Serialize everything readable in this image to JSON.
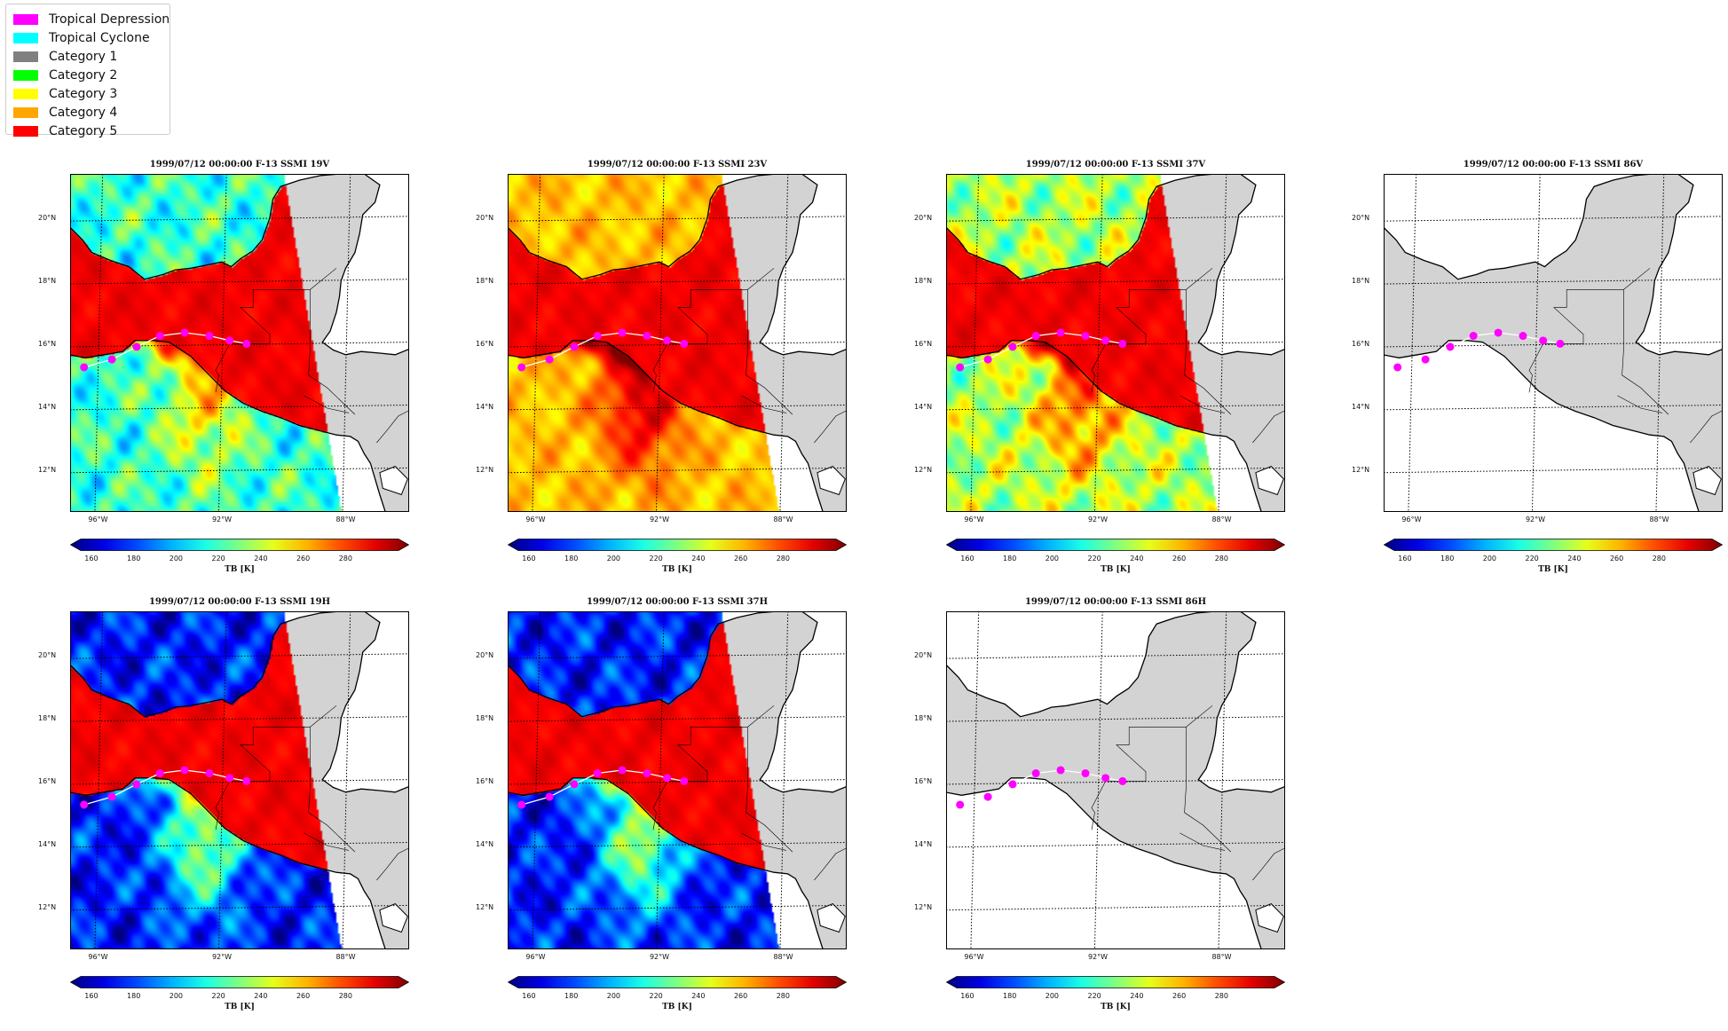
{
  "legend": {
    "items": [
      {
        "label": "Tropical Depression",
        "color": "#ff00ff"
      },
      {
        "label": "Tropical Cyclone",
        "color": "#00ffff"
      },
      {
        "label": "Category 1",
        "color": "#808080"
      },
      {
        "label": "Category 2",
        "color": "#00ff00"
      },
      {
        "label": "Category 3",
        "color": "#ffff00"
      },
      {
        "label": "Category 4",
        "color": "#ffa500"
      },
      {
        "label": "Category 5",
        "color": "#ff0000"
      }
    ]
  },
  "chart_data": [
    {
      "type": "heatmap",
      "title": "1999/07/12 00:00:00  F-13 SSMI 19V",
      "has_data": true,
      "ocean_level": "cold",
      "variant": "lowfreq",
      "colorbar_label": "TB [K]"
    },
    {
      "type": "heatmap",
      "title": "1999/07/12 00:00:00  F-13 SSMI 23V",
      "has_data": true,
      "ocean_level": "warm",
      "variant": "vapor",
      "colorbar_label": "TB [K]"
    },
    {
      "type": "heatmap",
      "title": "1999/07/12 00:00:00  F-13 SSMI 37V",
      "has_data": true,
      "ocean_level": "mid",
      "variant": "mid",
      "colorbar_label": "TB [K]"
    },
    {
      "type": "heatmap",
      "title": "1999/07/12 00:00:00  F-13 SSMI 86V",
      "has_data": false,
      "colorbar_label": "TB [K]"
    },
    {
      "type": "heatmap",
      "title": "1999/07/12 00:00:00  F-13 SSMI 19H",
      "has_data": true,
      "ocean_level": "verycold",
      "variant": "lowfreq",
      "colorbar_label": "TB [K]"
    },
    {
      "type": "heatmap",
      "title": "1999/07/12 00:00:00  F-13 SSMI 37H",
      "has_data": true,
      "ocean_level": "verycold",
      "variant": "mid",
      "colorbar_label": "TB [K]"
    },
    {
      "type": "heatmap",
      "title": "1999/07/12 00:00:00  F-13 SSMI 86H",
      "has_data": false,
      "colorbar_label": "TB [K]"
    }
  ],
  "map": {
    "lat_ticks": [
      "20°N",
      "18°N",
      "16°N",
      "14°N",
      "12°N"
    ],
    "lon_ticks": [
      "96°W",
      "92°W",
      "88°W"
    ]
  },
  "colorbar": {
    "ticks": [
      "160",
      "180",
      "200",
      "220",
      "240",
      "260",
      "280"
    ],
    "label": "TB [K]"
  },
  "track": {
    "marker_color": "#ff00ff",
    "line_color": "#ffffff",
    "points": [
      {
        "lon": -96.45,
        "lat": 15.35
      },
      {
        "lon": -95.55,
        "lat": 15.6
      },
      {
        "lon": -94.75,
        "lat": 16.0
      },
      {
        "lon": -94.0,
        "lat": 16.35
      },
      {
        "lon": -93.2,
        "lat": 16.45
      },
      {
        "lon": -92.4,
        "lat": 16.35
      },
      {
        "lon": -91.75,
        "lat": 16.2
      },
      {
        "lon": -91.2,
        "lat": 16.1
      }
    ]
  },
  "colors": {
    "land": "#d3d3d3",
    "ocean_nodata": "#ffffff",
    "coast": "#000000"
  }
}
